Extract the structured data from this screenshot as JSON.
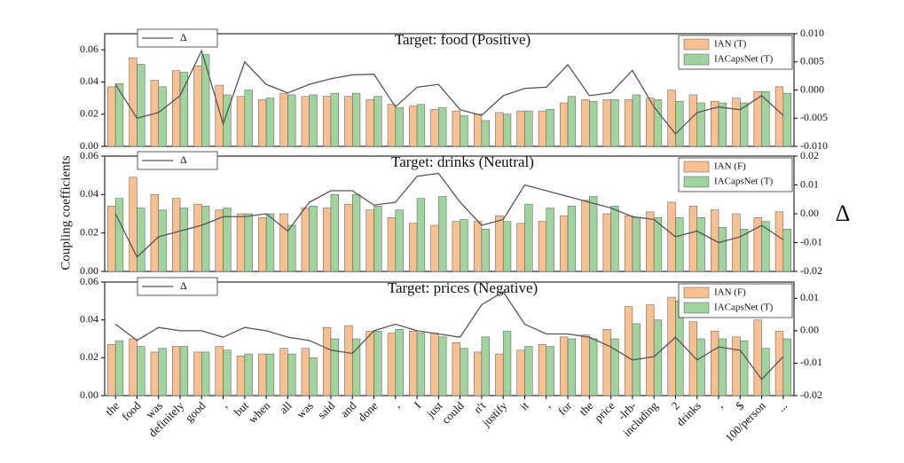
{
  "chart_data": [
    {
      "type": "bar",
      "title": "Target: food (Positive)",
      "ylim": [
        0,
        0.07
      ],
      "yticks": [
        {
          "value": 0,
          "label": "0.00"
        },
        {
          "value": 0.02,
          "label": "0.02"
        },
        {
          "value": 0.04,
          "label": "0.04"
        },
        {
          "value": 0.06,
          "label": "0.06"
        }
      ],
      "y2lim": [
        -0.01,
        0.01
      ],
      "y2ticks": [
        {
          "value": -0.01,
          "label": "-0.010"
        },
        {
          "value": -0.005,
          "label": "-0.005"
        },
        {
          "value": 0,
          "label": "0.000"
        },
        {
          "value": 0.005,
          "label": "0.005"
        },
        {
          "value": 0.01,
          "label": "0.010"
        }
      ],
      "series": [
        {
          "name": "IAN (T)",
          "color": "#f8bf90",
          "values": [
            0.037,
            0.055,
            0.041,
            0.047,
            0.05,
            0.038,
            0.031,
            0.029,
            0.033,
            0.031,
            0.031,
            0.031,
            0.029,
            0.026,
            0.025,
            0.023,
            0.022,
            0.02,
            0.021,
            0.022,
            0.022,
            0.027,
            0.029,
            0.029,
            0.029,
            0.03,
            0.035,
            0.032,
            0.028,
            0.03,
            0.034,
            0.037
          ]
        },
        {
          "name": "IACapsNet (T)",
          "color": "#9fd49f",
          "values": [
            0.039,
            0.051,
            0.037,
            0.046,
            0.057,
            0.032,
            0.035,
            0.03,
            0.032,
            0.032,
            0.033,
            0.033,
            0.031,
            0.024,
            0.026,
            0.024,
            0.019,
            0.016,
            0.02,
            0.022,
            0.023,
            0.031,
            0.028,
            0.029,
            0.032,
            0.029,
            0.028,
            0.027,
            0.027,
            0.027,
            0.034,
            0.033
          ]
        },
        {
          "name": "Δ",
          "color": "#555555",
          "axis": "y2",
          "values": [
            0.001,
            -0.005,
            -0.004,
            -0.001,
            0.007,
            -0.006,
            0.005,
            0.001,
            -0.0005,
            0.001,
            0.002,
            0.0027,
            0.0028,
            -0.003,
            0.0005,
            0.001,
            -0.0035,
            -0.0045,
            -0.001,
            0.0003,
            0.0005,
            0.0045,
            -0.001,
            -0.0005,
            0.0035,
            -0.003,
            -0.0078,
            -0.004,
            -0.003,
            -0.0035,
            -0.001,
            -0.0045
          ]
        }
      ]
    },
    {
      "type": "bar",
      "title": "Target: drinks (Neutral)",
      "ylabel": "Coupling coefficients",
      "y2label": "Δ",
      "ylim": [
        0,
        0.06
      ],
      "yticks": [
        {
          "value": 0,
          "label": "0.00"
        },
        {
          "value": 0.02,
          "label": "0.02"
        },
        {
          "value": 0.04,
          "label": "0.04"
        },
        {
          "value": 0.06,
          "label": "0.06"
        }
      ],
      "y2lim": [
        -0.02,
        0.02
      ],
      "y2ticks": [
        {
          "value": -0.02,
          "label": "-0.02"
        },
        {
          "value": -0.01,
          "label": "-0.01"
        },
        {
          "value": 0,
          "label": "0.00"
        },
        {
          "value": 0.01,
          "label": "0.01"
        },
        {
          "value": 0.02,
          "label": "0.02"
        }
      ],
      "series": [
        {
          "name": "IAN (F)",
          "color": "#f8bf90",
          "values": [
            0.034,
            0.049,
            0.04,
            0.038,
            0.035,
            0.032,
            0.03,
            0.028,
            0.03,
            0.033,
            0.033,
            0.035,
            0.032,
            0.028,
            0.025,
            0.024,
            0.026,
            0.026,
            0.029,
            0.025,
            0.026,
            0.029,
            0.037,
            0.03,
            0.029,
            0.031,
            0.036,
            0.034,
            0.032,
            0.03,
            0.028,
            0.031
          ]
        },
        {
          "name": "IACapsNet (T)",
          "color": "#9fd49f",
          "values": [
            0.038,
            0.033,
            0.032,
            0.033,
            0.034,
            0.033,
            0.03,
            0.03,
            0.024,
            0.034,
            0.04,
            0.04,
            0.034,
            0.032,
            0.038,
            0.039,
            0.027,
            0.022,
            0.026,
            0.035,
            0.033,
            0.034,
            0.039,
            0.034,
            0.028,
            0.028,
            0.028,
            0.028,
            0.023,
            0.022,
            0.026,
            0.022
          ]
        },
        {
          "name": "Δ",
          "color": "#555555",
          "axis": "y2",
          "values": [
            0,
            -0.015,
            -0.008,
            -0.006,
            -0.004,
            -0.001,
            -0.001,
            0,
            -0.006,
            0.004,
            0.008,
            0.008,
            0.003,
            0.004,
            0.013,
            0.014,
            0.004,
            -0.004,
            -0.002,
            0.01,
            0.008,
            0.006,
            0.004,
            0.002,
            -0.001,
            -0.002,
            -0.008,
            -0.006,
            -0.01,
            -0.008,
            -0.004,
            -0.009
          ]
        }
      ]
    },
    {
      "type": "bar",
      "title": "Target: prices (Negative)",
      "categories": [
        "the",
        "food",
        "was",
        "definitely",
        "good",
        ",",
        "but",
        "when",
        "all",
        "was",
        "said",
        "and",
        "done",
        ",",
        "I",
        "just",
        "could",
        "n't",
        "justify",
        "it",
        ",",
        "for",
        "the",
        "price",
        "-lrb-",
        "including",
        "2",
        "drinks",
        ",",
        "$",
        "100/person",
        "..."
      ],
      "ylim": [
        0,
        0.06
      ],
      "yticks": [
        {
          "value": 0,
          "label": "0.00"
        },
        {
          "value": 0.02,
          "label": "0.02"
        },
        {
          "value": 0.04,
          "label": "0.04"
        },
        {
          "value": 0.06,
          "label": "0.06"
        }
      ],
      "y2lim": [
        -0.02,
        0.015
      ],
      "y2ticks": [
        {
          "value": -0.02,
          "label": "-0.02"
        },
        {
          "value": -0.01,
          "label": "-0.01"
        },
        {
          "value": 0,
          "label": "0.00"
        },
        {
          "value": 0.01,
          "label": "0.01"
        }
      ],
      "series": [
        {
          "name": "IAN (F)",
          "color": "#f8bf90",
          "values": [
            0.027,
            0.03,
            0.023,
            0.026,
            0.023,
            0.026,
            0.021,
            0.022,
            0.025,
            0.025,
            0.036,
            0.037,
            0.034,
            0.033,
            0.034,
            0.033,
            0.028,
            0.023,
            0.022,
            0.024,
            0.027,
            0.031,
            0.032,
            0.035,
            0.047,
            0.048,
            0.052,
            0.039,
            0.034,
            0.031,
            0.04,
            0.034
          ]
        },
        {
          "name": "IACapsNet (T)",
          "color": "#9fd49f",
          "values": [
            0.029,
            0.026,
            0.025,
            0.026,
            0.023,
            0.024,
            0.022,
            0.022,
            0.022,
            0.02,
            0.03,
            0.03,
            0.034,
            0.035,
            0.033,
            0.031,
            0.025,
            0.031,
            0.034,
            0.026,
            0.026,
            0.03,
            0.03,
            0.03,
            0.038,
            0.04,
            0.05,
            0.03,
            0.03,
            0.029,
            0.025,
            0.03
          ]
        },
        {
          "name": "Δ",
          "color": "#555555",
          "axis": "y2",
          "values": [
            0.002,
            -0.003,
            0.001,
            0,
            0,
            -0.002,
            0.001,
            0,
            -0.002,
            -0.003,
            -0.006,
            -0.007,
            0,
            0.002,
            0,
            -0.001,
            -0.002,
            0.008,
            0.012,
            0.002,
            -0.001,
            -0.001,
            -0.002,
            -0.005,
            -0.009,
            -0.008,
            -0.002,
            -0.009,
            -0.005,
            -0.006,
            -0.015,
            -0.008
          ]
        }
      ]
    }
  ]
}
